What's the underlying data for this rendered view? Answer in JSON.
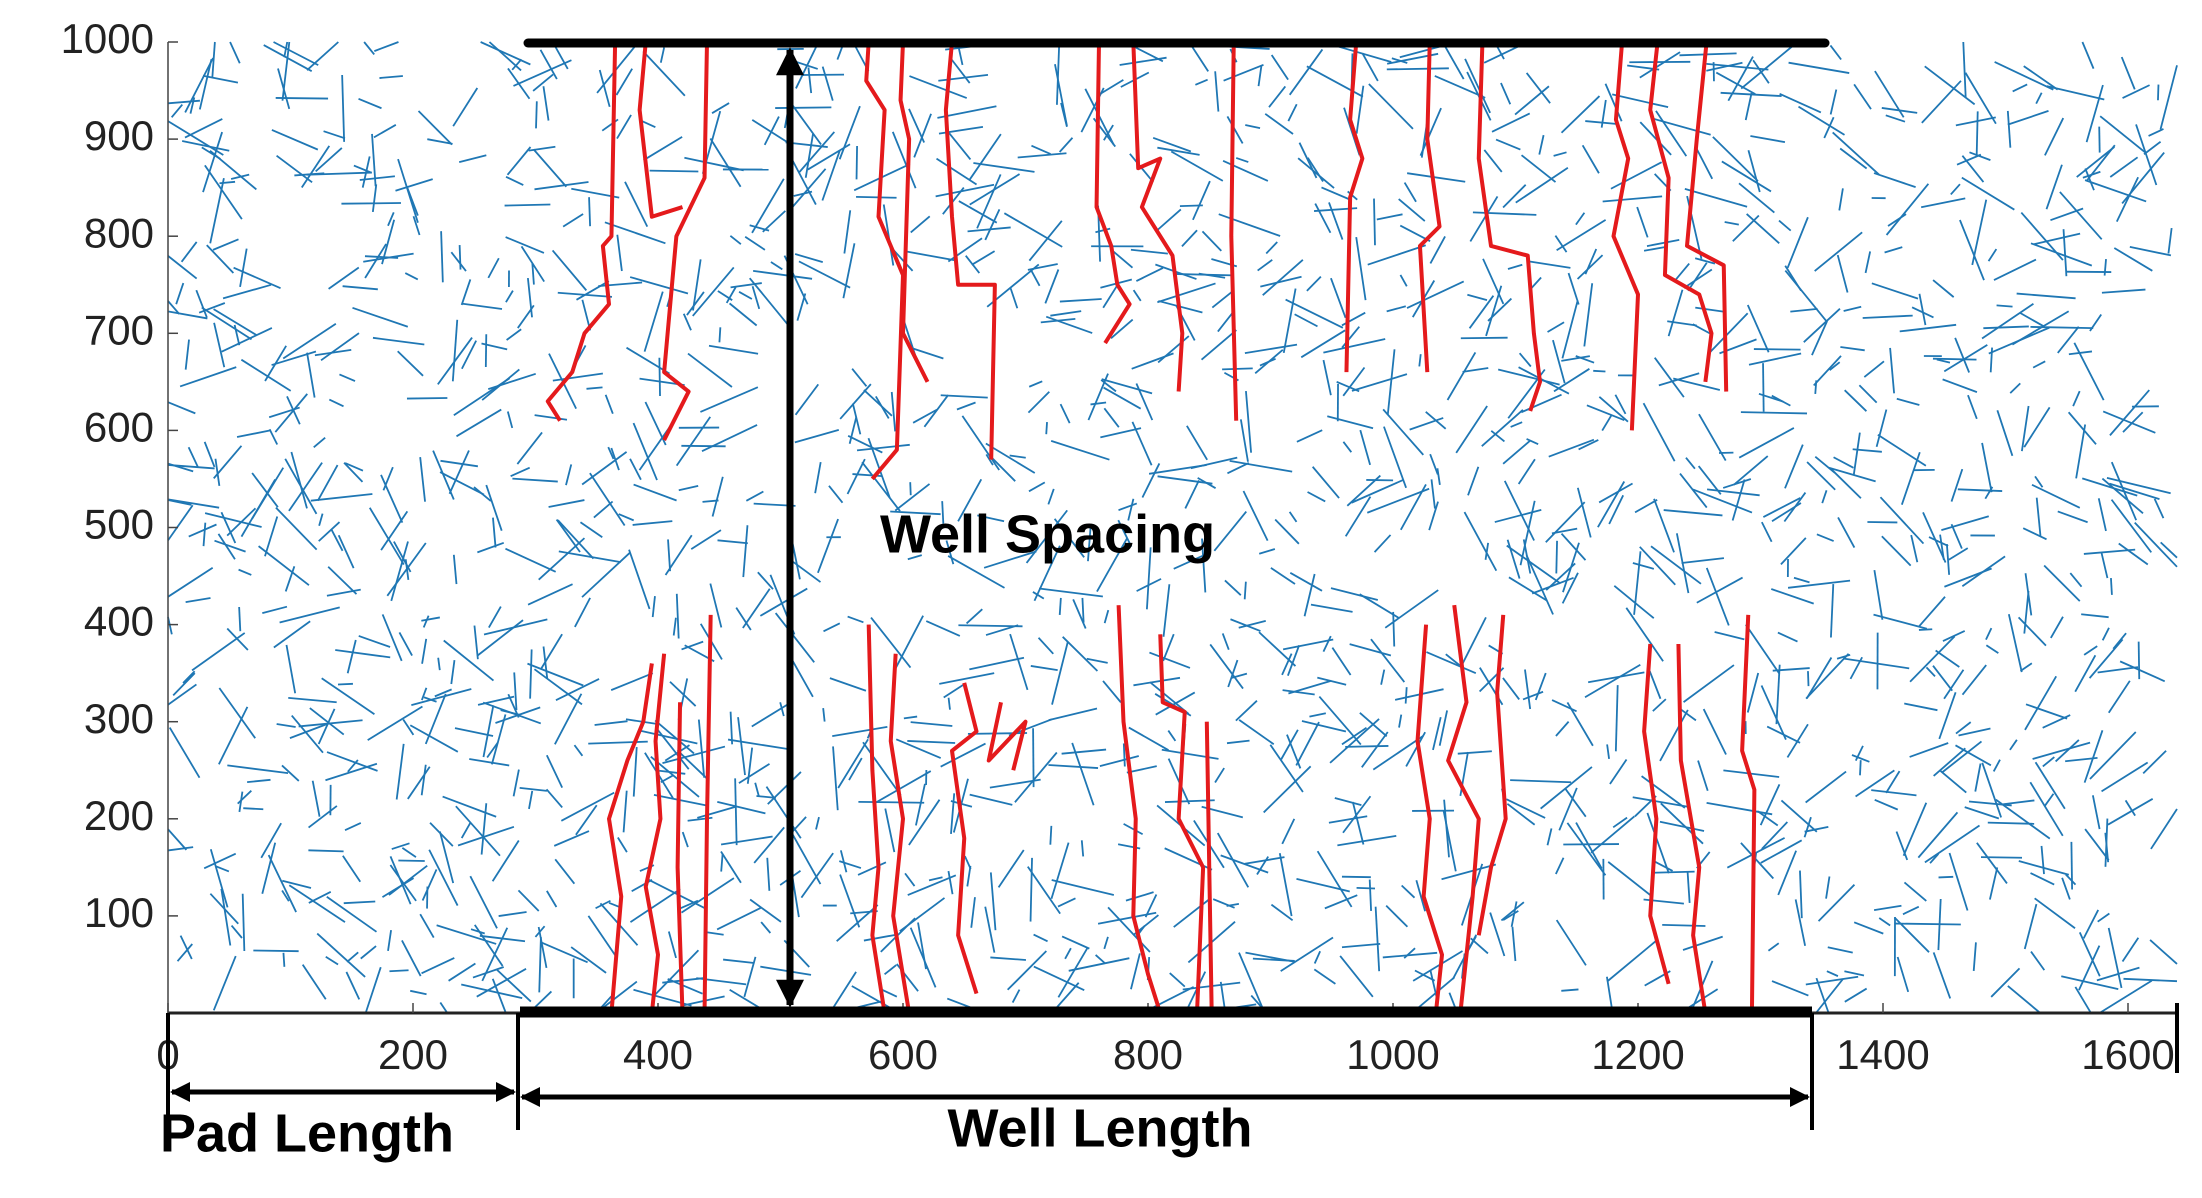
{
  "chart_data": {
    "type": "fracture-map",
    "xlim": [
      0,
      1640
    ],
    "ylim": [
      0,
      1000
    ],
    "xticks": [
      0,
      200,
      400,
      600,
      800,
      1000,
      1200,
      1400,
      1600
    ],
    "yticks": [
      100,
      200,
      300,
      400,
      500,
      600,
      700,
      800,
      900,
      1000
    ],
    "annotations": {
      "well_spacing": "Well Spacing",
      "pad_length": "Pad Length",
      "well_length": "Well Length"
    },
    "natural_fracture_color": "#1f77b4",
    "hydraulic_fracture_color": "#e41a1c",
    "hydraulic_fractures": [
      {
        "x": [
          365,
          362,
          355,
          360,
          340,
          330,
          310,
          320
        ],
        "y": [
          1000,
          800,
          790,
          730,
          700,
          660,
          630,
          610
        ]
      },
      {
        "x": [
          390,
          385,
          395,
          420
        ],
        "y": [
          1000,
          930,
          820,
          830
        ]
      },
      {
        "x": [
          440,
          438,
          415,
          405,
          425,
          405
        ],
        "y": [
          1000,
          860,
          800,
          660,
          640,
          590
        ]
      },
      {
        "x": [
          572,
          570,
          585,
          580,
          600,
          595,
          575
        ],
        "y": [
          1000,
          960,
          930,
          820,
          760,
          580,
          550
        ]
      },
      {
        "x": [
          600,
          598,
          605,
          600,
          620
        ],
        "y": [
          1000,
          940,
          900,
          700,
          650
        ]
      },
      {
        "x": [
          640,
          635,
          640,
          645,
          675,
          672
        ],
        "y": [
          1000,
          930,
          820,
          750,
          750,
          570
        ]
      },
      {
        "x": [
          760,
          758,
          770,
          775,
          785,
          765
        ],
        "y": [
          1000,
          830,
          790,
          750,
          730,
          690
        ]
      },
      {
        "x": [
          788,
          792,
          810,
          795,
          820,
          828,
          825
        ],
        "y": [
          1000,
          870,
          880,
          830,
          780,
          700,
          640
        ]
      },
      {
        "x": [
          870,
          868,
          872
        ],
        "y": [
          1000,
          800,
          610
        ]
      },
      {
        "x": [
          970,
          965,
          975,
          965,
          962
        ],
        "y": [
          1000,
          920,
          880,
          840,
          660
        ]
      },
      {
        "x": [
          1030,
          1028,
          1038,
          1022,
          1028
        ],
        "y": [
          1000,
          900,
          810,
          790,
          660
        ]
      },
      {
        "x": [
          1073,
          1070,
          1080,
          1110,
          1115,
          1120,
          1112
        ],
        "y": [
          1000,
          880,
          790,
          780,
          700,
          650,
          620
        ]
      },
      {
        "x": [
          1187,
          1182,
          1192,
          1180,
          1200,
          1195
        ],
        "y": [
          1000,
          920,
          880,
          800,
          740,
          600
        ]
      },
      {
        "x": [
          1216,
          1210,
          1225,
          1222,
          1250,
          1260,
          1255
        ],
        "y": [
          1000,
          930,
          860,
          760,
          740,
          700,
          650
        ]
      },
      {
        "x": [
          1256,
          1248,
          1240,
          1270,
          1272
        ],
        "y": [
          1000,
          900,
          790,
          770,
          640
        ]
      },
      {
        "x": [
          395,
          388,
          375,
          360,
          370,
          362
        ],
        "y": [
          360,
          300,
          260,
          200,
          120,
          0
        ]
      },
      {
        "x": [
          405,
          398,
          402,
          390,
          400,
          395
        ],
        "y": [
          370,
          280,
          200,
          130,
          60,
          0
        ]
      },
      {
        "x": [
          418,
          416,
          420
        ],
        "y": [
          320,
          150,
          0
        ]
      },
      {
        "x": [
          443,
          440,
          438
        ],
        "y": [
          410,
          200,
          0
        ]
      },
      {
        "x": [
          572,
          575,
          580,
          575,
          585
        ],
        "y": [
          400,
          250,
          150,
          80,
          0
        ]
      },
      {
        "x": [
          594,
          590,
          600,
          592,
          605
        ],
        "y": [
          370,
          280,
          200,
          100,
          0
        ]
      },
      {
        "x": [
          650,
          660,
          640,
          650,
          645,
          660
        ],
        "y": [
          340,
          290,
          270,
          180,
          80,
          20
        ]
      },
      {
        "x": [
          680,
          670,
          700,
          690
        ],
        "y": [
          320,
          260,
          300,
          250
        ]
      },
      {
        "x": [
          776,
          780,
          790,
          788,
          800,
          810
        ],
        "y": [
          420,
          300,
          200,
          100,
          40,
          0
        ]
      },
      {
        "x": [
          810,
          812,
          830,
          825,
          845,
          840
        ],
        "y": [
          390,
          320,
          310,
          200,
          150,
          0
        ]
      },
      {
        "x": [
          848,
          850,
          852
        ],
        "y": [
          300,
          150,
          0
        ]
      },
      {
        "x": [
          1027,
          1020,
          1030,
          1025,
          1040,
          1035
        ],
        "y": [
          400,
          280,
          200,
          120,
          60,
          0
        ]
      },
      {
        "x": [
          1050,
          1060,
          1045,
          1070,
          1065,
          1055
        ],
        "y": [
          420,
          320,
          260,
          200,
          120,
          0
        ]
      },
      {
        "x": [
          1090,
          1085,
          1092,
          1080,
          1070
        ],
        "y": [
          410,
          330,
          200,
          150,
          80
        ]
      },
      {
        "x": [
          1210,
          1205,
          1215,
          1210,
          1225
        ],
        "y": [
          380,
          290,
          200,
          100,
          30
        ]
      },
      {
        "x": [
          1233,
          1235,
          1250,
          1245,
          1255
        ],
        "y": [
          380,
          260,
          150,
          80,
          0
        ]
      },
      {
        "x": [
          1290,
          1285,
          1295,
          1293
        ],
        "y": [
          410,
          270,
          230,
          0
        ]
      }
    ]
  }
}
